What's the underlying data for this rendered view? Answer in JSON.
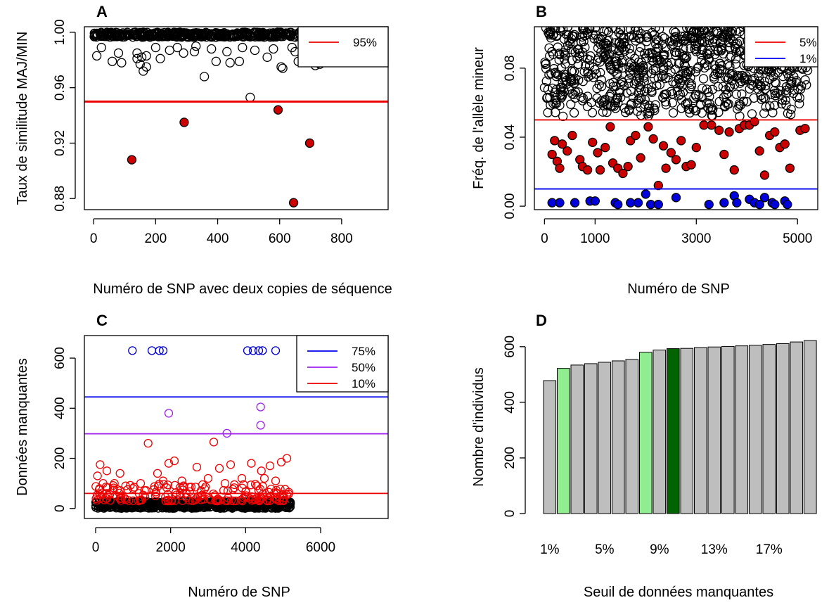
{
  "chart_data": [
    {
      "panel_label": "A",
      "type": "scatter",
      "xlabel": "Numéro de SNP avec deux copies de séquence",
      "ylabel": "Taux de similitude MAJ/MIN",
      "xlim": [
        -30,
        950
      ],
      "ylim": [
        0.872,
        1.004
      ],
      "xticks": [
        0,
        200,
        400,
        600,
        800
      ],
      "yticks": [
        0.88,
        0.92,
        0.96,
        1.0
      ],
      "ytick_labels": [
        "0.88",
        "0.92",
        "0.96",
        "1.00"
      ],
      "hlines": [
        {
          "label": "95%",
          "y": 0.95,
          "color": "#ee0000"
        }
      ],
      "legend": "top-right",
      "series": [
        {
          "color": "#cc0000",
          "filled": true,
          "points": [
            [
              123,
              0.908
            ],
            [
              292,
              0.935
            ],
            [
              595,
              0.944
            ],
            [
              645,
              0.877
            ],
            [
              697,
              0.92
            ]
          ]
        },
        {
          "color": "#000000",
          "filled": false,
          "points": [
            [
              505,
              0.953
            ],
            [
              357,
              0.968
            ],
            [
              10,
              0.983
            ],
            [
              60,
              0.979
            ],
            [
              90,
              0.978
            ],
            [
              150,
              0.977
            ],
            [
              160,
              0.972
            ],
            [
              170,
              0.975
            ],
            [
              140,
              0.981
            ],
            [
              155,
              0.982
            ],
            [
              170,
              0.983
            ],
            [
              215,
              0.981
            ],
            [
              140,
              0.985
            ],
            [
              245,
              0.987
            ],
            [
              325,
              0.986
            ],
            [
              395,
              0.979
            ],
            [
              440,
              0.978
            ],
            [
              470,
              0.979
            ],
            [
              560,
              0.982
            ],
            [
              605,
              0.975
            ],
            [
              610,
              0.974
            ],
            [
              650,
              0.986
            ],
            [
              690,
              0.982
            ],
            [
              715,
              0.976
            ],
            [
              730,
              0.977
            ],
            [
              380,
              0.988
            ],
            [
              430,
              0.986
            ],
            [
              520,
              0.987
            ],
            [
              25,
              0.989
            ],
            [
              80,
              0.985
            ],
            [
              200,
              0.989
            ],
            [
              290,
              0.985
            ],
            [
              330,
              0.99
            ],
            [
              480,
              0.989
            ],
            [
              640,
              0.989
            ],
            [
              660,
              0.979
            ],
            [
              270,
              0.989
            ],
            [
              580,
              0.988
            ]
          ]
        }
      ]
    },
    {
      "panel_label": "B",
      "type": "scatter",
      "xlabel": "Numéro de SNP",
      "ylabel": "Fréq. de l'allèle mineur",
      "xlim": [
        -200,
        5400
      ],
      "ylim": [
        -0.002,
        0.104
      ],
      "xticks": [
        0,
        1000,
        3000,
        5000
      ],
      "yticks": [
        0.0,
        0.04,
        0.08
      ],
      "ytick_labels": [
        "0.00",
        "0.04",
        "0.08"
      ],
      "hlines": [
        {
          "label": "5%",
          "y": 0.05,
          "color": "#ee0000"
        },
        {
          "label": "1%",
          "y": 0.01,
          "color": "#0000ee"
        }
      ],
      "legend": "top-right",
      "series": [
        {
          "color": "#0000dd",
          "filled": true,
          "points": [
            [
              150,
              0.002
            ],
            [
              300,
              0.002
            ],
            [
              600,
              0.002
            ],
            [
              900,
              0.003
            ],
            [
              1000,
              0.003
            ],
            [
              1400,
              0.002
            ],
            [
              1450,
              0.001
            ],
            [
              1700,
              0.002
            ],
            [
              1850,
              0.002
            ],
            [
              2100,
              0.001
            ],
            [
              2000,
              0.007
            ],
            [
              2250,
              0.001
            ],
            [
              2600,
              0.005
            ],
            [
              3250,
              0.001
            ],
            [
              3550,
              0.002
            ],
            [
              3750,
              0.006
            ],
            [
              3800,
              0.002
            ],
            [
              4050,
              0.004
            ],
            [
              4150,
              0.002
            ],
            [
              4250,
              0.001
            ],
            [
              4350,
              0.005
            ],
            [
              4500,
              0.002
            ],
            [
              4550,
              0.001
            ],
            [
              4750,
              0.003
            ],
            [
              4800,
              0.001
            ]
          ]
        },
        {
          "color": "#cc0000",
          "filled": true,
          "points": [
            [
              200,
              0.038
            ],
            [
              350,
              0.036
            ],
            [
              150,
              0.03
            ],
            [
              250,
              0.026
            ],
            [
              300,
              0.022
            ],
            [
              450,
              0.032
            ],
            [
              550,
              0.041
            ],
            [
              700,
              0.027
            ],
            [
              750,
              0.023
            ],
            [
              850,
              0.021
            ],
            [
              950,
              0.037
            ],
            [
              1050,
              0.031
            ],
            [
              1100,
              0.021
            ],
            [
              1200,
              0.034
            ],
            [
              1300,
              0.046
            ],
            [
              1350,
              0.025
            ],
            [
              1450,
              0.022
            ],
            [
              1550,
              0.019
            ],
            [
              1650,
              0.023
            ],
            [
              1700,
              0.038
            ],
            [
              1800,
              0.041
            ],
            [
              1900,
              0.028
            ],
            [
              2050,
              0.046
            ],
            [
              2150,
              0.039
            ],
            [
              2250,
              0.012
            ],
            [
              2350,
              0.035
            ],
            [
              2400,
              0.022
            ],
            [
              2500,
              0.031
            ],
            [
              2600,
              0.027
            ],
            [
              2700,
              0.038
            ],
            [
              2800,
              0.023
            ],
            [
              2900,
              0.024
            ],
            [
              3000,
              0.034
            ],
            [
              3150,
              0.047
            ],
            [
              3300,
              0.047
            ],
            [
              3450,
              0.044
            ],
            [
              3550,
              0.03
            ],
            [
              3650,
              0.043
            ],
            [
              3750,
              0.021
            ],
            [
              3850,
              0.045
            ],
            [
              3950,
              0.047
            ],
            [
              4050,
              0.047
            ],
            [
              4150,
              0.049
            ],
            [
              4250,
              0.032
            ],
            [
              4350,
              0.018
            ],
            [
              4450,
              0.041
            ],
            [
              4550,
              0.043
            ],
            [
              4650,
              0.034
            ],
            [
              4750,
              0.036
            ],
            [
              4850,
              0.022
            ],
            [
              5050,
              0.044
            ],
            [
              5150,
              0.045
            ]
          ]
        },
        {
          "color": "#000000",
          "filled": false,
          "note_only": true,
          "points": []
        }
      ]
    },
    {
      "panel_label": "C",
      "type": "scatter",
      "xlabel": "Numéro de SNP",
      "ylabel": "Données manquantes",
      "xlim": [
        -300,
        7800
      ],
      "ylim": [
        -40,
        690
      ],
      "xticks": [
        0,
        2000,
        4000,
        6000
      ],
      "yticks": [
        0,
        200,
        400,
        600
      ],
      "ytick_labels": [
        "0",
        "200",
        "400",
        "600"
      ],
      "hlines": [
        {
          "label": "75%",
          "y": 445,
          "color": "#0000ee"
        },
        {
          "label": "50%",
          "y": 298,
          "color": "#a020f0"
        },
        {
          "label": "10%",
          "y": 60,
          "color": "#ee0000"
        }
      ],
      "legend": "top-right",
      "series": [
        {
          "color": "#0000cc",
          "filled": false,
          "points": [
            [
              980,
              630
            ],
            [
              1500,
              630
            ],
            [
              1700,
              630
            ],
            [
              1800,
              630
            ],
            [
              4050,
              630
            ],
            [
              4200,
              630
            ],
            [
              4350,
              630
            ],
            [
              4450,
              630
            ],
            [
              4800,
              630
            ]
          ]
        },
        {
          "color": "#a020f0",
          "filled": false,
          "points": [
            [
              1950,
              380
            ],
            [
              3500,
              300
            ],
            [
              4400,
              405
            ],
            [
              4400,
              332
            ]
          ]
        },
        {
          "color": "#ee0000",
          "filled": false,
          "points": [
            [
              50,
              130
            ],
            [
              120,
              175
            ],
            [
              200,
              100
            ],
            [
              300,
              150
            ],
            [
              500,
              100
            ],
            [
              650,
              140
            ],
            [
              800,
              90
            ],
            [
              1000,
              80
            ],
            [
              1200,
              100
            ],
            [
              1400,
              260
            ],
            [
              1550,
              75
            ],
            [
              1650,
              140
            ],
            [
              1800,
              110
            ],
            [
              1950,
              180
            ],
            [
              2100,
              190
            ],
            [
              2300,
              110
            ],
            [
              2500,
              85
            ],
            [
              2700,
              165
            ],
            [
              2850,
              95
            ],
            [
              3000,
              120
            ],
            [
              3150,
              265
            ],
            [
              3300,
              160
            ],
            [
              3450,
              100
            ],
            [
              3600,
              175
            ],
            [
              3700,
              95
            ],
            [
              3900,
              120
            ],
            [
              4150,
              180
            ],
            [
              4300,
              90
            ],
            [
              4420,
              150
            ],
            [
              4500,
              120
            ],
            [
              4650,
              170
            ],
            [
              4800,
              110
            ],
            [
              4950,
              185
            ],
            [
              5100,
              200
            ],
            [
              5150,
              65
            ]
          ]
        }
      ]
    },
    {
      "panel_label": "D",
      "type": "bar",
      "xlabel": "Seuil de données manquantes",
      "ylabel": "Nombre d'individus",
      "ylim": [
        0,
        640
      ],
      "yticks": [
        0,
        200,
        400,
        600
      ],
      "ytick_labels": [
        "0",
        "200",
        "400",
        "600"
      ],
      "xtick_labels": [
        "1%",
        "5%",
        "9%",
        "13%",
        "17%"
      ],
      "values": [
        478,
        522,
        534,
        539,
        544,
        549,
        554,
        580,
        588,
        593,
        594,
        597,
        599,
        601,
        603,
        605,
        608,
        611,
        617,
        622
      ],
      "colors": [
        "#bebebe",
        "#90ee90",
        "#bebebe",
        "#bebebe",
        "#bebebe",
        "#bebebe",
        "#bebebe",
        "#90ee90",
        "#bebebe",
        "#006400",
        "#bebebe",
        "#bebebe",
        "#bebebe",
        "#bebebe",
        "#bebebe",
        "#bebebe",
        "#bebebe",
        "#bebebe",
        "#bebebe",
        "#bebebe"
      ]
    }
  ]
}
